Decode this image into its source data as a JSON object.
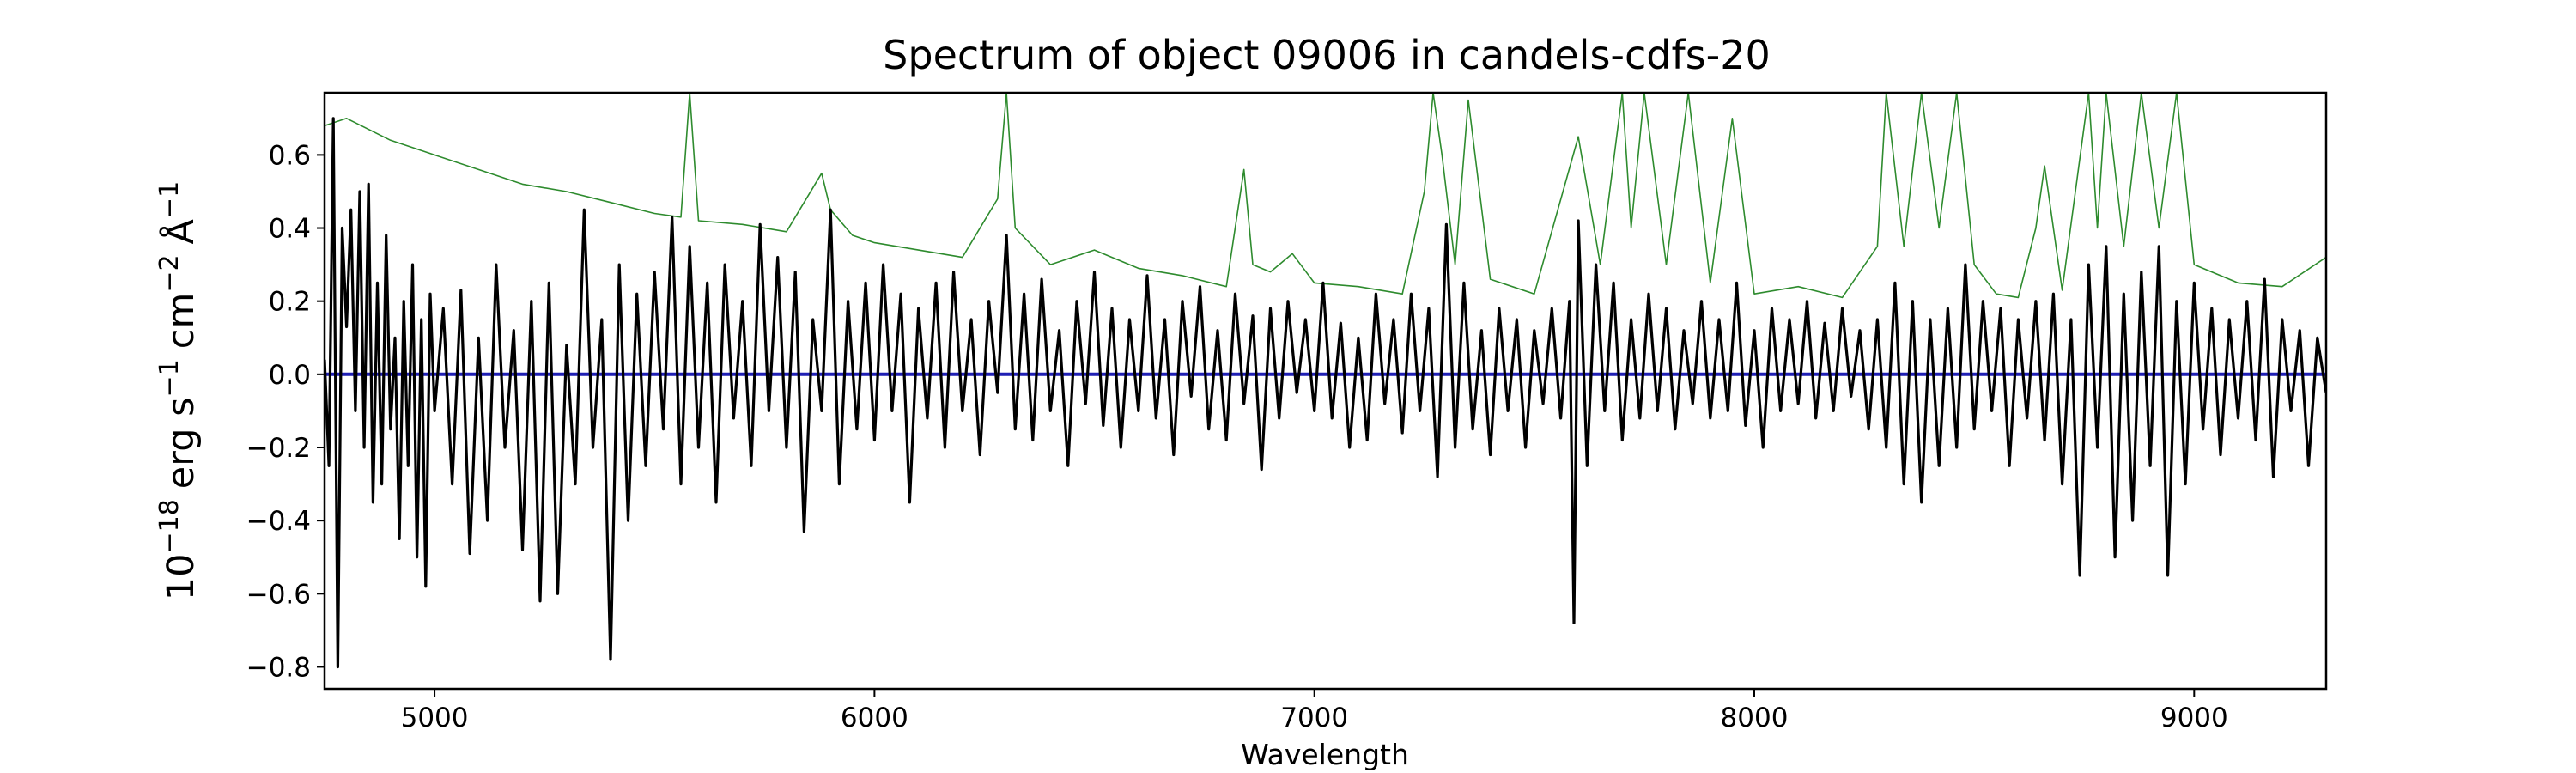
{
  "chart_data": {
    "type": "line",
    "title": "Spectrum of object 09006 in candels-cdfs-20",
    "xlabel": "Wavelength",
    "ylabel": {
      "prefix": "10",
      "exponent": "−18",
      "units": "erg s",
      "s_exp": "−1",
      "cm": "cm",
      "cm_exp": "−2",
      "angstrom": "Å",
      "a_exp": "−1"
    },
    "xlim": [
      4750,
      9300
    ],
    "ylim": [
      -0.86,
      0.77
    ],
    "x_ticks": [
      {
        "value": 5000,
        "label": "5000"
      },
      {
        "value": 6000,
        "label": "6000"
      },
      {
        "value": 7000,
        "label": "7000"
      },
      {
        "value": 8000,
        "label": "8000"
      },
      {
        "value": 9000,
        "label": "9000"
      }
    ],
    "y_ticks": [
      {
        "value": 0.6,
        "label": "0.6"
      },
      {
        "value": 0.4,
        "label": "0.4"
      },
      {
        "value": 0.2,
        "label": "0.2"
      },
      {
        "value": 0.0,
        "label": "0.0"
      },
      {
        "value": -0.2,
        "label": "−0.2"
      },
      {
        "value": -0.4,
        "label": "−0.4"
      },
      {
        "value": -0.6,
        "label": "−0.6"
      },
      {
        "value": -0.8,
        "label": "−0.8"
      }
    ],
    "series": [
      {
        "role": "error-spectrum",
        "color": "#2e8b2e",
        "x": [
          4750,
          4800,
          4900,
          5000,
          5100,
          5200,
          5300,
          5400,
          5500,
          5560,
          5580,
          5600,
          5700,
          5800,
          5880,
          5900,
          5950,
          6000,
          6100,
          6200,
          6280,
          6300,
          6320,
          6400,
          6500,
          6600,
          6700,
          6800,
          6840,
          6860,
          6900,
          6950,
          7000,
          7100,
          7200,
          7250,
          7270,
          7290,
          7320,
          7350,
          7400,
          7500,
          7600,
          7650,
          7700,
          7720,
          7750,
          7800,
          7850,
          7900,
          7950,
          8000,
          8100,
          8200,
          8280,
          8300,
          8340,
          8380,
          8420,
          8460,
          8500,
          8550,
          8600,
          8640,
          8660,
          8700,
          8760,
          8780,
          8800,
          8840,
          8880,
          8920,
          8960,
          9000,
          9100,
          9200,
          9300
        ],
        "y": [
          0.68,
          0.7,
          0.64,
          0.6,
          0.56,
          0.52,
          0.5,
          0.47,
          0.44,
          0.43,
          0.77,
          0.42,
          0.41,
          0.39,
          0.55,
          0.45,
          0.38,
          0.36,
          0.34,
          0.32,
          0.48,
          0.77,
          0.4,
          0.3,
          0.34,
          0.29,
          0.27,
          0.24,
          0.56,
          0.3,
          0.28,
          0.33,
          0.25,
          0.24,
          0.22,
          0.5,
          0.77,
          0.6,
          0.3,
          0.75,
          0.26,
          0.22,
          0.65,
          0.3,
          0.77,
          0.4,
          0.77,
          0.3,
          0.77,
          0.25,
          0.7,
          0.22,
          0.24,
          0.21,
          0.35,
          0.77,
          0.35,
          0.77,
          0.4,
          0.77,
          0.3,
          0.22,
          0.21,
          0.4,
          0.57,
          0.23,
          0.77,
          0.4,
          0.77,
          0.35,
          0.77,
          0.4,
          0.77,
          0.3,
          0.25,
          0.24,
          0.32
        ]
      },
      {
        "role": "zero-line",
        "color": "#1f1fb4",
        "x": [
          4750,
          9300
        ],
        "y": [
          0.0,
          0.0
        ]
      },
      {
        "role": "flux",
        "color": "#000000",
        "x": [
          4750,
          4760,
          4770,
          4780,
          4790,
          4800,
          4810,
          4820,
          4830,
          4840,
          4850,
          4860,
          4870,
          4880,
          4890,
          4900,
          4910,
          4920,
          4930,
          4940,
          4950,
          4960,
          4970,
          4980,
          4990,
          5000,
          5020,
          5040,
          5060,
          5080,
          5100,
          5120,
          5140,
          5160,
          5180,
          5200,
          5220,
          5240,
          5260,
          5280,
          5300,
          5320,
          5340,
          5360,
          5380,
          5400,
          5420,
          5440,
          5460,
          5480,
          5500,
          5520,
          5540,
          5560,
          5580,
          5600,
          5620,
          5640,
          5660,
          5680,
          5700,
          5720,
          5740,
          5760,
          5780,
          5800,
          5820,
          5840,
          5860,
          5880,
          5900,
          5920,
          5940,
          5960,
          5980,
          6000,
          6020,
          6040,
          6060,
          6080,
          6100,
          6120,
          6140,
          6160,
          6180,
          6200,
          6220,
          6240,
          6260,
          6280,
          6300,
          6320,
          6340,
          6360,
          6380,
          6400,
          6420,
          6440,
          6460,
          6480,
          6500,
          6520,
          6540,
          6560,
          6580,
          6600,
          6620,
          6640,
          6660,
          6680,
          6700,
          6720,
          6740,
          6760,
          6780,
          6800,
          6820,
          6840,
          6860,
          6880,
          6900,
          6920,
          6940,
          6960,
          6980,
          7000,
          7020,
          7040,
          7060,
          7080,
          7100,
          7120,
          7140,
          7160,
          7180,
          7200,
          7220,
          7240,
          7260,
          7280,
          7300,
          7320,
          7340,
          7360,
          7380,
          7400,
          7420,
          7440,
          7460,
          7480,
          7500,
          7520,
          7540,
          7560,
          7580,
          7590,
          7600,
          7620,
          7640,
          7660,
          7680,
          7700,
          7720,
          7740,
          7760,
          7780,
          7800,
          7820,
          7840,
          7860,
          7880,
          7900,
          7920,
          7940,
          7960,
          7980,
          8000,
          8020,
          8040,
          8060,
          8080,
          8100,
          8120,
          8140,
          8160,
          8180,
          8200,
          8220,
          8240,
          8260,
          8280,
          8300,
          8320,
          8340,
          8360,
          8380,
          8400,
          8420,
          8440,
          8460,
          8480,
          8500,
          8520,
          8540,
          8560,
          8580,
          8600,
          8620,
          8640,
          8660,
          8680,
          8700,
          8720,
          8740,
          8760,
          8780,
          8800,
          8820,
          8840,
          8860,
          8880,
          8900,
          8920,
          8940,
          8960,
          8980,
          9000,
          9020,
          9040,
          9060,
          9080,
          9100,
          9120,
          9140,
          9160,
          9180,
          9200,
          9220,
          9240,
          9260,
          9280,
          9300
        ],
        "y": [
          0.04,
          -0.25,
          0.7,
          -0.8,
          0.4,
          0.13,
          0.45,
          -0.1,
          0.5,
          -0.2,
          0.52,
          -0.35,
          0.25,
          -0.3,
          0.38,
          -0.15,
          0.1,
          -0.45,
          0.2,
          -0.25,
          0.3,
          -0.5,
          0.15,
          -0.58,
          0.22,
          -0.1,
          0.18,
          -0.3,
          0.23,
          -0.49,
          0.1,
          -0.4,
          0.3,
          -0.2,
          0.12,
          -0.48,
          0.2,
          -0.62,
          0.25,
          -0.6,
          0.08,
          -0.3,
          0.45,
          -0.2,
          0.15,
          -0.78,
          0.3,
          -0.4,
          0.22,
          -0.25,
          0.28,
          -0.15,
          0.43,
          -0.3,
          0.35,
          -0.2,
          0.25,
          -0.35,
          0.3,
          -0.12,
          0.2,
          -0.25,
          0.41,
          -0.1,
          0.32,
          -0.2,
          0.28,
          -0.43,
          0.15,
          -0.1,
          0.45,
          -0.3,
          0.2,
          -0.15,
          0.25,
          -0.18,
          0.3,
          -0.1,
          0.22,
          -0.35,
          0.18,
          -0.12,
          0.25,
          -0.2,
          0.28,
          -0.1,
          0.15,
          -0.22,
          0.2,
          -0.05,
          0.38,
          -0.15,
          0.22,
          -0.18,
          0.26,
          -0.1,
          0.12,
          -0.25,
          0.2,
          -0.08,
          0.28,
          -0.14,
          0.18,
          -0.2,
          0.15,
          -0.1,
          0.27,
          -0.12,
          0.15,
          -0.22,
          0.2,
          -0.06,
          0.24,
          -0.15,
          0.12,
          -0.18,
          0.22,
          -0.08,
          0.16,
          -0.26,
          0.18,
          -0.12,
          0.2,
          -0.05,
          0.15,
          -0.1,
          0.25,
          -0.12,
          0.14,
          -0.2,
          0.1,
          -0.18,
          0.22,
          -0.08,
          0.15,
          -0.16,
          0.22,
          -0.1,
          0.18,
          -0.28,
          0.41,
          -0.2,
          0.25,
          -0.15,
          0.12,
          -0.22,
          0.18,
          -0.1,
          0.15,
          -0.2,
          0.12,
          -0.08,
          0.18,
          -0.12,
          0.2,
          -0.68,
          0.42,
          -0.25,
          0.3,
          -0.1,
          0.25,
          -0.18,
          0.15,
          -0.12,
          0.22,
          -0.1,
          0.18,
          -0.15,
          0.12,
          -0.08,
          0.2,
          -0.12,
          0.15,
          -0.1,
          0.25,
          -0.14,
          0.12,
          -0.2,
          0.18,
          -0.1,
          0.15,
          -0.08,
          0.2,
          -0.12,
          0.14,
          -0.1,
          0.18,
          -0.06,
          0.12,
          -0.15,
          0.15,
          -0.2,
          0.25,
          -0.3,
          0.2,
          -0.35,
          0.15,
          -0.25,
          0.18,
          -0.2,
          0.3,
          -0.15,
          0.2,
          -0.1,
          0.18,
          -0.25,
          0.15,
          -0.12,
          0.2,
          -0.18,
          0.22,
          -0.3,
          0.15,
          -0.55,
          0.3,
          -0.2,
          0.35,
          -0.5,
          0.22,
          -0.4,
          0.28,
          -0.25,
          0.35,
          -0.55,
          0.2,
          -0.3,
          0.25,
          -0.15,
          0.18,
          -0.22,
          0.15,
          -0.12,
          0.2,
          -0.18,
          0.26,
          -0.28,
          0.15,
          -0.1,
          0.12,
          -0.25,
          0.1,
          -0.05
        ]
      }
    ]
  }
}
